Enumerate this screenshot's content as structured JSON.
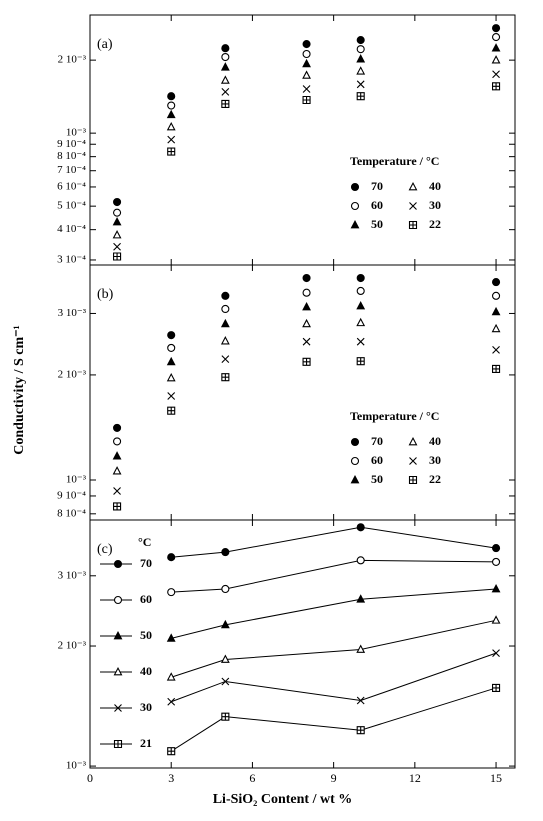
{
  "chart_data": [
    {
      "type": "scatter",
      "panel_label": "(a)",
      "color": "#000000",
      "log_y": true,
      "xlim": [
        0,
        15.7
      ],
      "xticks": [
        0,
        3,
        6,
        9,
        12,
        15
      ],
      "show_xtick_labels": false,
      "ylim": [
        0.000286,
        0.00307
      ],
      "yticks": [
        {
          "value": 0.0003,
          "label": "3 10⁻⁴"
        },
        {
          "value": 0.0004,
          "label": "4 10⁻⁴"
        },
        {
          "value": 0.0005,
          "label": "5 10⁻⁴"
        },
        {
          "value": 0.0006,
          "label": "6 10⁻⁴"
        },
        {
          "value": 0.0007,
          "label": "7 10⁻⁴"
        },
        {
          "value": 0.0008,
          "label": "8 10⁻⁴"
        },
        {
          "value": 0.0009,
          "label": "9 10⁻⁴"
        },
        {
          "value": 0.001,
          "label": "10⁻³"
        },
        {
          "value": 0.002,
          "label": "2 10⁻³"
        }
      ],
      "legend_title": "Temperature / °C",
      "legend": "lower right",
      "x": [
        1,
        3,
        5,
        8,
        10,
        15
      ],
      "series": [
        {
          "name": "70",
          "marker": "filled-circle",
          "values": [
            0.00052,
            0.00142,
            0.00224,
            0.00233,
            0.00242,
            0.00271
          ]
        },
        {
          "name": "60",
          "marker": "open-circle",
          "values": [
            0.00047,
            0.0013,
            0.00206,
            0.00212,
            0.00222,
            0.00249
          ]
        },
        {
          "name": "50",
          "marker": "filled-triangle",
          "values": [
            0.00043,
            0.00119,
            0.00187,
            0.00193,
            0.00202,
            0.00224
          ]
        },
        {
          "name": "40",
          "marker": "open-triangle",
          "values": [
            0.00038,
            0.00106,
            0.00165,
            0.00173,
            0.0018,
            0.002
          ]
        },
        {
          "name": "30",
          "marker": "cross",
          "values": [
            0.00034,
            0.00094,
            0.00148,
            0.00152,
            0.00159,
            0.00175
          ]
        },
        {
          "name": "22",
          "marker": "crossed-square",
          "values": [
            0.00031,
            0.00084,
            0.00132,
            0.00137,
            0.00142,
            0.00156
          ]
        }
      ]
    },
    {
      "type": "scatter",
      "panel_label": "(b)",
      "color": "#000000",
      "log_y": true,
      "ylabel": "Conductivity / S cm⁻¹",
      "xlim": [
        0,
        15.7
      ],
      "xticks": [
        0,
        3,
        6,
        9,
        12,
        15
      ],
      "show_xtick_labels": false,
      "ylim": [
        0.000768,
        0.00413
      ],
      "yticks": [
        {
          "value": 0.0008,
          "label": "8 10⁻⁴"
        },
        {
          "value": 0.0009,
          "label": "9 10⁻⁴"
        },
        {
          "value": 0.001,
          "label": "10⁻³"
        },
        {
          "value": 0.002,
          "label": "2 10⁻³"
        },
        {
          "value": 0.003,
          "label": "3 10⁻³"
        }
      ],
      "legend_title": "Temperature / °C",
      "legend": "lower right",
      "x": [
        1,
        3,
        5,
        8,
        10,
        15
      ],
      "series": [
        {
          "name": "70",
          "marker": "filled-circle",
          "values": [
            0.00141,
            0.0026,
            0.00337,
            0.00379,
            0.00379,
            0.00369
          ]
        },
        {
          "name": "60",
          "marker": "open-circle",
          "values": [
            0.00129,
            0.00239,
            0.00309,
            0.00344,
            0.00348,
            0.00337
          ]
        },
        {
          "name": "50",
          "marker": "filled-triangle",
          "values": [
            0.00117,
            0.00218,
            0.0028,
            0.00313,
            0.00315,
            0.00303
          ]
        },
        {
          "name": "40",
          "marker": "open-triangle",
          "values": [
            0.00106,
            0.00196,
            0.0025,
            0.0028,
            0.00282,
            0.00271
          ]
        },
        {
          "name": "30",
          "marker": "cross",
          "values": [
            0.00093,
            0.00174,
            0.00222,
            0.00249,
            0.00249,
            0.00236
          ]
        },
        {
          "name": "22",
          "marker": "crossed-square",
          "values": [
            0.00084,
            0.00158,
            0.00197,
            0.00218,
            0.00219,
            0.00208
          ]
        }
      ]
    },
    {
      "type": "line",
      "panel_label": "(c)",
      "color": "#000000",
      "log_y": true,
      "xlabel": "Li-SiO₂ Content / wt %",
      "xlim": [
        0,
        15.7
      ],
      "xticks": [
        0,
        3,
        6,
        9,
        12,
        15
      ],
      "show_xtick_labels": true,
      "ylim": [
        0.000989,
        0.00414
      ],
      "yticks": [
        {
          "value": 0.001,
          "label": "10⁻³"
        },
        {
          "value": 0.002,
          "label": "2 10⁻³"
        },
        {
          "value": 0.003,
          "label": "3 10⁻³"
        }
      ],
      "legend_title": "°C",
      "legend": "left",
      "x": [
        3,
        5,
        10,
        15
      ],
      "series": [
        {
          "name": "70",
          "marker": "filled-circle",
          "values": [
            0.00334,
            0.00344,
            0.00397,
            0.00352
          ]
        },
        {
          "name": "60",
          "marker": "open-circle",
          "values": [
            0.00273,
            0.00278,
            0.00328,
            0.00325
          ]
        },
        {
          "name": "50",
          "marker": "filled-triangle",
          "values": [
            0.00209,
            0.00226,
            0.00262,
            0.00278
          ]
        },
        {
          "name": "40",
          "marker": "open-triangle",
          "values": [
            0.00167,
            0.00185,
            0.00196,
            0.00232
          ]
        },
        {
          "name": "30",
          "marker": "cross",
          "values": [
            0.00145,
            0.00163,
            0.00146,
            0.00192
          ]
        },
        {
          "name": "21",
          "marker": "crossed-square",
          "values": [
            0.00109,
            0.00133,
            0.00123,
            0.00157
          ]
        }
      ]
    }
  ]
}
